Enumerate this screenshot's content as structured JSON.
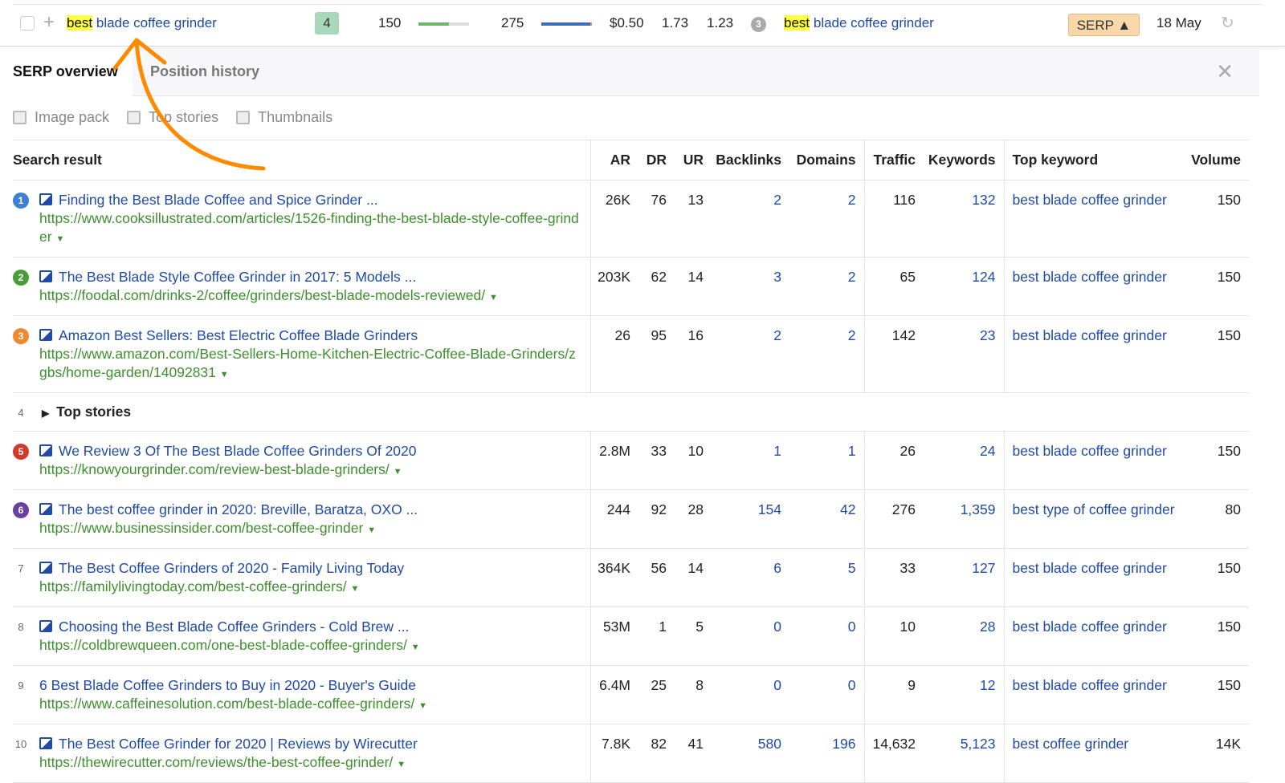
{
  "keyword_row": {
    "keyword_highlight": "best",
    "keyword_rest": " blade coffee grinder",
    "position": "4",
    "volume": "150",
    "kd": "275",
    "cpc": "$0.50",
    "v1": "1.73",
    "v2": "1.23",
    "serp_pos": "3",
    "top_kw_highlight": "best",
    "top_kw_rest": " blade coffee grinder",
    "serp_button": "SERP ▲",
    "date": "18 May",
    "volume_bar_fraction": 0.6,
    "colors": {
      "volume_bar": "#6db56d",
      "kd_bar": "#3a6fb5",
      "highlight": "#ffff3d",
      "serp_button": "#f8d8a8"
    }
  },
  "panel": {
    "tabs": [
      {
        "label": "SERP overview",
        "active": true
      },
      {
        "label": "Position history",
        "active": false
      }
    ],
    "features": [
      {
        "label": "Image pack",
        "icon": "image-pack-icon"
      },
      {
        "label": "Top stories",
        "icon": "top-stories-icon"
      },
      {
        "label": "Thumbnails",
        "icon": "thumbnail-icon"
      }
    ],
    "columns": [
      "Search result",
      "AR",
      "DR",
      "UR",
      "Backlinks",
      "Domains",
      "Traffic",
      "Keywords",
      "Top keyword",
      "Volume"
    ],
    "rows": [
      {
        "n": "1",
        "color": "#3d7fd1",
        "img": true,
        "title": "Finding the Best Blade Coffee and Spice Grinder ...",
        "url": "https://www.cooksillustrated.com/articles/1526-finding-the-best-blade-style-coffee-grinder",
        "ar": "26K",
        "dr": "76",
        "ur": "13",
        "bl": "2",
        "dom": "2",
        "tr": "116",
        "kw": "132",
        "top": "best blade coffee grinder",
        "vol": "150"
      },
      {
        "n": "2",
        "color": "#4a9d3b",
        "img": true,
        "title": "The Best Blade Style Coffee Grinder in 2017: 5 Models ...",
        "url": "https://foodal.com/drinks-2/coffee/grinders/best-blade-models-reviewed/",
        "ar": "203K",
        "dr": "62",
        "ur": "14",
        "bl": "3",
        "dom": "2",
        "tr": "65",
        "kw": "124",
        "top": "best blade coffee grinder",
        "vol": "150"
      },
      {
        "n": "3",
        "color": "#f0892e",
        "img": true,
        "title": "Amazon Best Sellers: Best Electric Coffee Blade Grinders",
        "url": "https://www.amazon.com/Best-Sellers-Home-Kitchen-Electric-Coffee-Blade-Grinders/zgbs/home-garden/14092831",
        "ar": "26",
        "dr": "95",
        "ur": "16",
        "bl": "2",
        "dom": "2",
        "tr": "142",
        "kw": "23",
        "top": "best blade coffee grinder",
        "vol": "150"
      },
      {
        "n": "4",
        "feature": "Top stories"
      },
      {
        "n": "5",
        "color": "#d2392a",
        "img": true,
        "title": "We Review 3 Of The Best Blade Coffee Grinders Of 2020",
        "url": "https://knowyourgrinder.com/review-best-blade-grinders/",
        "ar": "2.8M",
        "dr": "33",
        "ur": "10",
        "bl": "1",
        "dom": "1",
        "tr": "26",
        "kw": "24",
        "top": "best blade coffee grinder",
        "vol": "150"
      },
      {
        "n": "6",
        "color": "#6a3fa0",
        "img": true,
        "title": "The best coffee grinder in 2020: Breville, Baratza, OXO ...",
        "url": "https://www.businessinsider.com/best-coffee-grinder",
        "ar": "244",
        "dr": "92",
        "ur": "28",
        "bl": "154",
        "dom": "42",
        "tr": "276",
        "kw": "1,359",
        "top": "best type of coffee grinder",
        "vol": "80"
      },
      {
        "n": "7",
        "img": true,
        "title": "The Best Coffee Grinders of 2020 - Family Living Today",
        "url": "https://familylivingtoday.com/best-coffee-grinders/",
        "ar": "364K",
        "dr": "56",
        "ur": "14",
        "bl": "6",
        "dom": "5",
        "tr": "33",
        "kw": "127",
        "top": "best blade coffee grinder",
        "vol": "150"
      },
      {
        "n": "8",
        "img": true,
        "title": "Choosing the Best Blade Coffee Grinders - Cold Brew ...",
        "url": "https://coldbrewqueen.com/one-best-blade-coffee-grinders/",
        "ar": "53M",
        "dr": "1",
        "ur": "5",
        "bl": "0",
        "dom": "0",
        "tr": "10",
        "kw": "28",
        "top": "best blade coffee grinder",
        "vol": "150"
      },
      {
        "n": "9",
        "img": false,
        "title": "6 Best Blade Coffee Grinders to Buy in 2020 - Buyer's Guide",
        "url": "https://www.caffeinesolution.com/best-blade-coffee-grinders/",
        "ar": "6.4M",
        "dr": "25",
        "ur": "8",
        "bl": "0",
        "dom": "0",
        "tr": "9",
        "kw": "12",
        "top": "best blade coffee grinder",
        "vol": "150"
      },
      {
        "n": "10",
        "img": true,
        "title": "The Best Coffee Grinder for 2020 | Reviews by Wirecutter",
        "url": "https://thewirecutter.com/reviews/the-best-coffee-grinder/",
        "ar": "7.8K",
        "dr": "82",
        "ur": "41",
        "bl": "580",
        "dom": "196",
        "tr": "14,632",
        "kw": "5,123",
        "top": "best coffee grinder",
        "vol": "14K"
      }
    ]
  },
  "annotation_color": "#ff8a00"
}
